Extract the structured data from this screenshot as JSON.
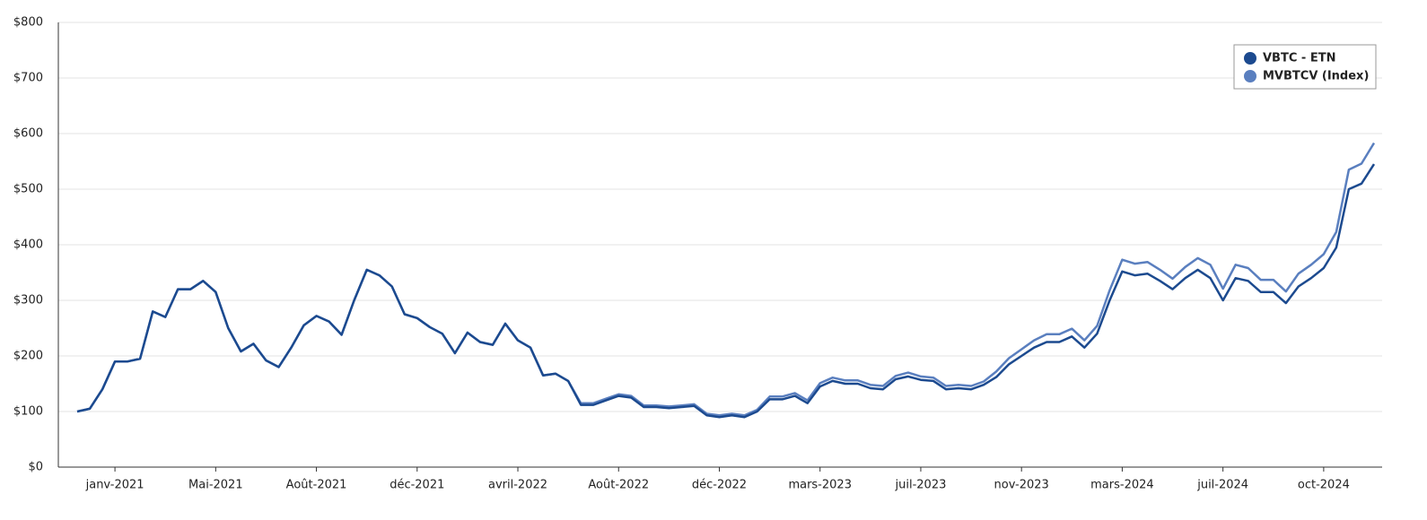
{
  "chart_data": {
    "type": "line",
    "categories": [
      null,
      null,
      null,
      "janv-2021",
      null,
      null,
      null,
      null,
      null,
      null,
      null,
      "Mai-2021",
      null,
      null,
      null,
      null,
      null,
      null,
      null,
      "Août-2021",
      null,
      null,
      null,
      null,
      null,
      null,
      null,
      "déc-2021",
      null,
      null,
      null,
      null,
      null,
      null,
      null,
      "avril-2022",
      null,
      null,
      null,
      null,
      null,
      null,
      null,
      "Août-2022",
      null,
      null,
      null,
      null,
      null,
      null,
      null,
      "déc-2022",
      null,
      null,
      null,
      null,
      null,
      null,
      null,
      "mars-2023",
      null,
      null,
      null,
      null,
      null,
      null,
      null,
      "juil-2023",
      null,
      null,
      null,
      null,
      null,
      null,
      null,
      "nov-2023",
      null,
      null,
      null,
      null,
      null,
      null,
      null,
      "mars-2024",
      null,
      null,
      null,
      null,
      null,
      null,
      null,
      "juil-2024",
      null,
      null,
      null,
      null,
      null,
      null,
      null,
      "oct-2024",
      null,
      null,
      null,
      null
    ],
    "series": [
      {
        "name": "VBTC - ETN",
        "color": "#1c4a8f",
        "values": [
          100,
          105,
          140,
          190,
          190,
          195,
          280,
          270,
          320,
          320,
          335,
          315,
          250,
          208,
          222,
          192,
          180,
          215,
          255,
          272,
          262,
          238,
          300,
          355,
          345,
          325,
          275,
          268,
          252,
          240,
          205,
          242,
          225,
          220,
          258,
          228,
          215,
          165,
          168,
          155,
          112,
          112,
          120,
          128,
          125,
          108,
          108,
          106,
          108,
          110,
          93,
          90,
          93,
          90,
          100,
          122,
          122,
          128,
          115,
          145,
          155,
          150,
          150,
          142,
          140,
          158,
          163,
          157,
          155,
          140,
          142,
          140,
          148,
          162,
          185,
          200,
          215,
          225,
          225,
          235,
          215,
          240,
          300,
          352,
          345,
          348,
          335,
          320,
          340,
          355,
          340,
          300,
          340,
          335,
          315,
          315,
          295,
          325,
          340,
          358,
          395,
          500,
          510,
          545
        ]
      },
      {
        "name": "MVBTCV (Index)",
        "color": "#5a7fbf",
        "values": [
          100,
          105,
          140,
          190,
          190,
          195,
          280,
          270,
          320,
          320,
          335,
          315,
          250,
          208,
          222,
          192,
          180,
          215,
          255,
          272,
          262,
          238,
          300,
          355,
          345,
          325,
          275,
          268,
          252,
          240,
          205,
          242,
          225,
          220,
          258,
          228,
          215,
          165,
          168,
          155,
          115,
          115,
          123,
          131,
          128,
          111,
          111,
          109,
          111,
          113,
          96,
          93,
          96,
          93,
          103,
          127,
          127,
          133,
          120,
          151,
          161,
          156,
          156,
          148,
          146,
          164,
          170,
          163,
          161,
          146,
          148,
          146,
          154,
          172,
          196,
          212,
          228,
          239,
          239,
          249,
          228,
          254,
          318,
          373,
          366,
          369,
          355,
          339,
          360,
          376,
          364,
          321,
          364,
          358,
          337,
          337,
          316,
          348,
          364,
          383,
          423,
          535,
          546,
          583
        ]
      }
    ],
    "ylim": [
      0,
      800
    ],
    "yticks": [
      {
        "value": 0,
        "label": "$0"
      },
      {
        "value": 100,
        "label": "$100"
      },
      {
        "value": 200,
        "label": "$200"
      },
      {
        "value": 300,
        "label": "$300"
      },
      {
        "value": 400,
        "label": "$400"
      },
      {
        "value": 500,
        "label": "$500"
      },
      {
        "value": 600,
        "label": "$600"
      },
      {
        "value": 700,
        "label": "$700"
      },
      {
        "value": 800,
        "label": "$800"
      }
    ],
    "grid": true,
    "legend": "top-right"
  }
}
